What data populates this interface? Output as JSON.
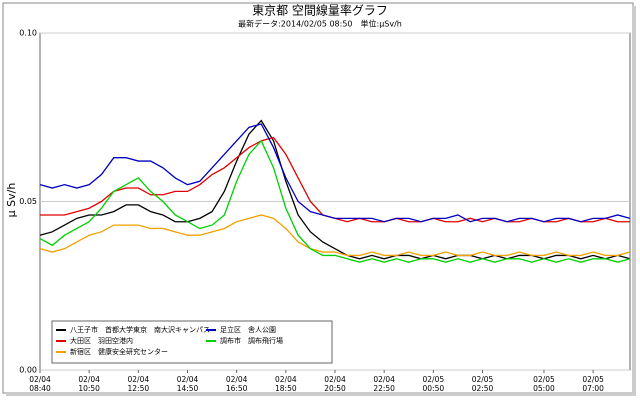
{
  "chart_data": {
    "type": "line",
    "title": "東京都 空間線量率グラフ",
    "subtitle": "最新データ:2014/02/05 08:50　単位:μSv/h",
    "y_label": "μ Sv/h",
    "categories": [
      "02/04 08:40",
      null,
      null,
      null,
      "02/04 10:50",
      null,
      null,
      null,
      "02/04 12:50",
      null,
      null,
      null,
      "02/04 14:50",
      null,
      null,
      null,
      "02/04 16:50",
      null,
      null,
      null,
      "02/04 18:50",
      null,
      null,
      null,
      "02/04 20:50",
      null,
      null,
      null,
      "02/04 22:50",
      null,
      null,
      null,
      "02/05 00:50",
      null,
      null,
      null,
      "02/05 02:50",
      null,
      null,
      null,
      null,
      "02/05 05:00",
      null,
      null,
      null,
      "02/05 07:00",
      null,
      null,
      null
    ],
    "ylim": [
      0,
      0.1
    ],
    "yticks": [
      {
        "value": 0,
        "label": "0.00"
      },
      {
        "value": 0.05,
        "label": "0.05"
      },
      {
        "value": 0.1,
        "label": "0.10"
      }
    ],
    "grid": true,
    "series": [
      {
        "name": "八王子市　首都大学東京　南大沢キャンパス",
        "color": "#000000",
        "values": [
          0.04,
          0.041,
          0.043,
          0.045,
          0.046,
          0.046,
          0.047,
          0.049,
          0.049,
          0.047,
          0.046,
          0.044,
          0.044,
          0.045,
          0.047,
          0.053,
          0.062,
          0.07,
          0.074,
          0.068,
          0.056,
          0.046,
          0.041,
          0.038,
          0.036,
          0.034,
          0.033,
          0.034,
          0.033,
          0.034,
          0.034,
          0.033,
          0.034,
          0.033,
          0.034,
          0.034,
          0.033,
          0.034,
          0.033,
          0.034,
          0.034,
          0.033,
          0.034,
          0.034,
          0.033,
          0.034,
          0.033,
          0.034,
          0.033
        ]
      },
      {
        "name": "大田区　羽田空港内",
        "color": "#e00000",
        "values": [
          0.046,
          0.046,
          0.046,
          0.047,
          0.048,
          0.05,
          0.053,
          0.054,
          0.054,
          0.052,
          0.052,
          0.053,
          0.053,
          0.055,
          0.058,
          0.06,
          0.063,
          0.066,
          0.068,
          0.069,
          0.064,
          0.057,
          0.05,
          0.046,
          0.045,
          0.044,
          0.045,
          0.044,
          0.044,
          0.045,
          0.044,
          0.044,
          0.045,
          0.044,
          0.044,
          0.045,
          0.044,
          0.045,
          0.044,
          0.044,
          0.045,
          0.044,
          0.044,
          0.045,
          0.044,
          0.044,
          0.045,
          0.044,
          0.044
        ]
      },
      {
        "name": "新宿区　健康安全研究センター",
        "color": "#f0a000",
        "values": [
          0.036,
          0.035,
          0.036,
          0.038,
          0.04,
          0.041,
          0.043,
          0.043,
          0.043,
          0.042,
          0.042,
          0.041,
          0.04,
          0.04,
          0.041,
          0.042,
          0.044,
          0.045,
          0.046,
          0.045,
          0.042,
          0.038,
          0.036,
          0.035,
          0.035,
          0.034,
          0.034,
          0.035,
          0.034,
          0.034,
          0.035,
          0.034,
          0.034,
          0.035,
          0.034,
          0.034,
          0.035,
          0.034,
          0.034,
          0.035,
          0.034,
          0.034,
          0.035,
          0.034,
          0.034,
          0.035,
          0.034,
          0.034,
          0.035
        ]
      },
      {
        "name": "足立区　舎人公園",
        "color": "#0000c0",
        "values": [
          0.055,
          0.054,
          0.055,
          0.054,
          0.055,
          0.058,
          0.063,
          0.063,
          0.062,
          0.062,
          0.06,
          0.057,
          0.055,
          0.056,
          0.06,
          0.064,
          0.068,
          0.072,
          0.073,
          0.066,
          0.057,
          0.05,
          0.047,
          0.046,
          0.045,
          0.045,
          0.045,
          0.045,
          0.044,
          0.045,
          0.045,
          0.044,
          0.045,
          0.045,
          0.046,
          0.044,
          0.045,
          0.045,
          0.044,
          0.045,
          0.045,
          0.044,
          0.045,
          0.045,
          0.044,
          0.045,
          0.045,
          0.046,
          0.045
        ]
      },
      {
        "name": "調布市　調布飛行場",
        "color": "#00d000",
        "values": [
          0.039,
          0.037,
          0.04,
          0.042,
          0.044,
          0.048,
          0.053,
          0.055,
          0.057,
          0.053,
          0.05,
          0.046,
          0.044,
          0.042,
          0.043,
          0.046,
          0.056,
          0.064,
          0.068,
          0.06,
          0.048,
          0.04,
          0.036,
          0.034,
          0.034,
          0.033,
          0.032,
          0.033,
          0.032,
          0.033,
          0.032,
          0.033,
          0.033,
          0.032,
          0.033,
          0.032,
          0.033,
          0.032,
          0.033,
          0.033,
          0.032,
          0.033,
          0.032,
          0.033,
          0.032,
          0.033,
          0.033,
          0.032,
          0.033
        ]
      }
    ]
  }
}
